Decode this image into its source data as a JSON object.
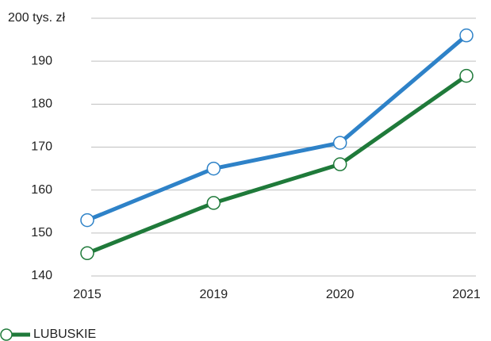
{
  "chart_data": {
    "type": "line",
    "categories": [
      "2015",
      "2019",
      "2020",
      "2021"
    ],
    "series": [
      {
        "color": "#2e82c8",
        "values": [
          153,
          165,
          171,
          196
        ]
      },
      {
        "name": "LUBUSKIE",
        "color": "#1f7a3a",
        "values": [
          145.3,
          157,
          166,
          186.6
        ]
      }
    ],
    "ylim": [
      140,
      200
    ],
    "yticks": [
      140,
      150,
      160,
      170,
      180,
      190,
      {
        "value": 200,
        "label": "200 tys. zł"
      }
    ],
    "grid": true
  }
}
